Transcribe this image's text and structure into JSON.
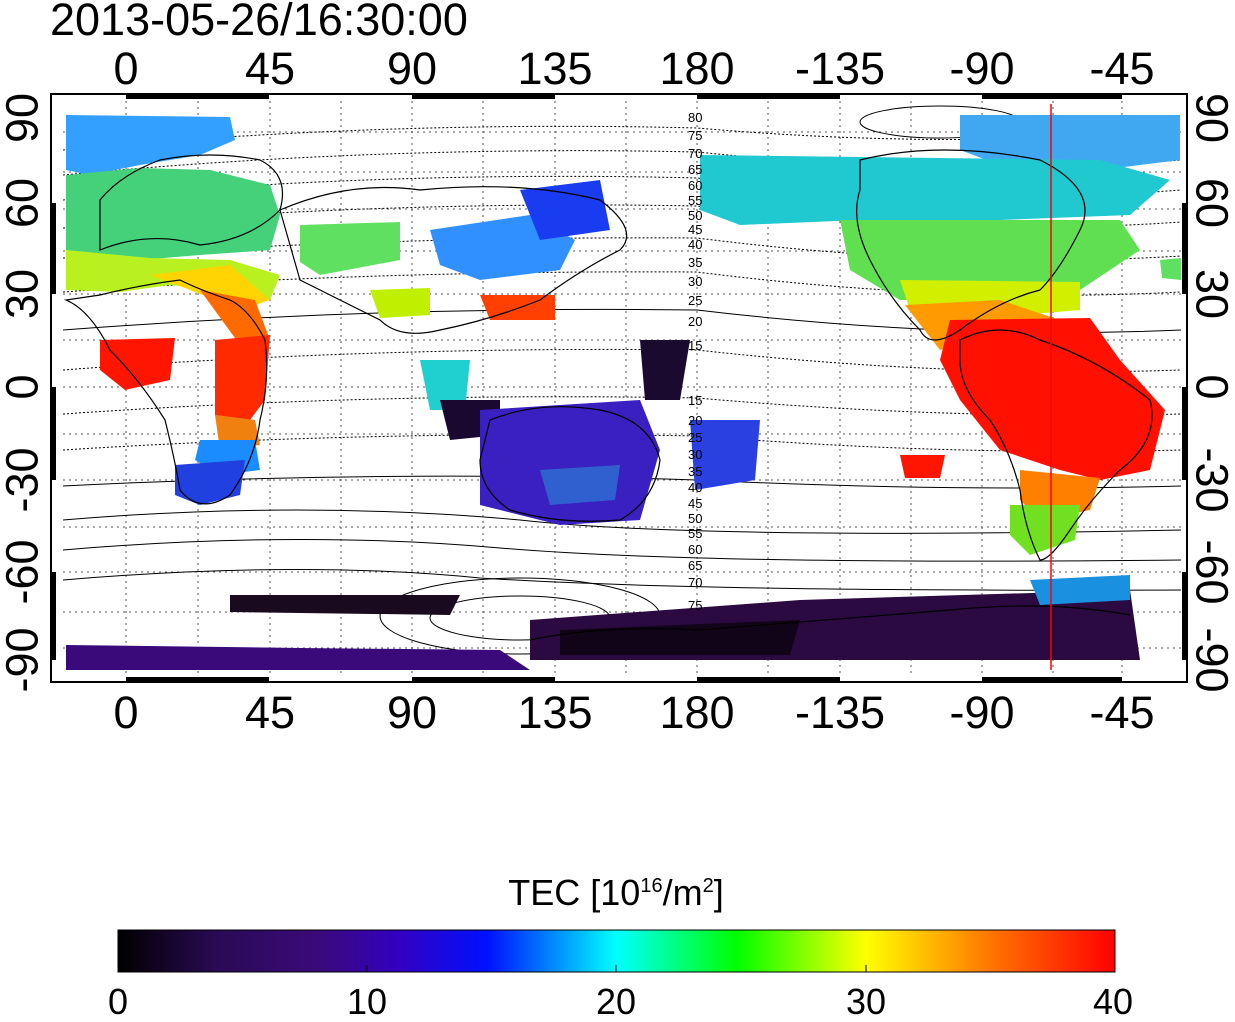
{
  "timestamp": "2013-05-26/16:30:00",
  "map": {
    "x_ticks": [
      "0",
      "45",
      "90",
      "135",
      "180",
      "-135",
      "-90",
      "-45"
    ],
    "y_ticks": [
      "90",
      "60",
      "30",
      "0",
      "-30",
      "-60",
      "-90"
    ],
    "contour_labels": [
      "80",
      "75",
      "70",
      "65",
      "60",
      "55",
      "50",
      "45",
      "40",
      "35",
      "30",
      "25",
      "20",
      "15",
      "15",
      "20",
      "25",
      "30",
      "35",
      "40",
      "45",
      "50",
      "55",
      "60",
      "65",
      "70",
      "75"
    ]
  },
  "colorbar": {
    "title_prefix": "TEC  [10",
    "title_exp": "16",
    "title_mid": "/m",
    "title_exp2": "2",
    "title_suffix": "]",
    "ticks": [
      "0",
      "10",
      "20",
      "30",
      "40"
    ],
    "colors": [
      "#000000",
      "#3a0a7a",
      "#0000ff",
      "#00ffff",
      "#00ff00",
      "#ffff00",
      "#ff8000",
      "#ff0000"
    ]
  },
  "colors": {
    "terminator_line": "#ff0000",
    "frame": "#000000",
    "grid": "#555555"
  }
}
